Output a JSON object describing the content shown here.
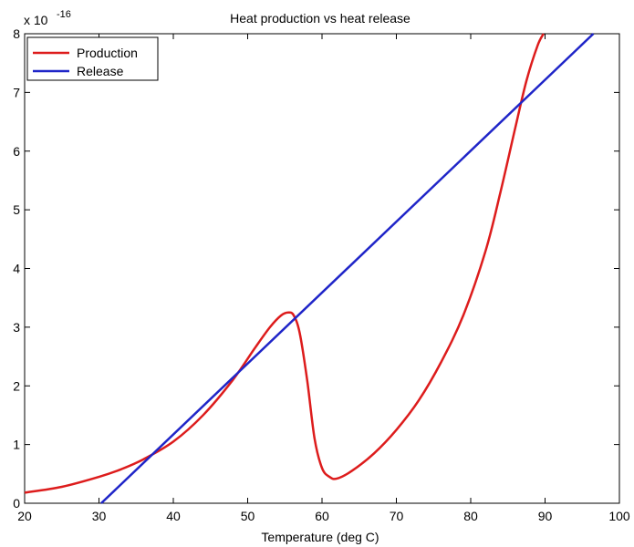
{
  "chart_data": {
    "type": "line",
    "title": "Heat production vs heat release",
    "xlabel": "Temperature (deg C)",
    "ylabel": "",
    "y_exponent_base": "x 10",
    "y_exponent_power": "-16",
    "xlim": [
      20,
      100
    ],
    "ylim": [
      0,
      8
    ],
    "xticks": [
      "20",
      "30",
      "40",
      "50",
      "60",
      "70",
      "80",
      "90",
      "100"
    ],
    "yticks": [
      "0",
      "1",
      "2",
      "3",
      "4",
      "5",
      "6",
      "7",
      "8"
    ],
    "grid": false,
    "legend_position": "top-left",
    "series": [
      {
        "name": "Production",
        "color": "#dd1c1c",
        "x": [
          20,
          25,
          30,
          33,
          36,
          40,
          44,
          48,
          51,
          53,
          54.5,
          55.5,
          56.2,
          57,
          58,
          59,
          60,
          61,
          62,
          64,
          67,
          70,
          73,
          76,
          79,
          82,
          84,
          86,
          87.5,
          89,
          89.8
        ],
        "y": [
          0.18,
          0.28,
          0.45,
          0.58,
          0.75,
          1.05,
          1.5,
          2.1,
          2.65,
          3.0,
          3.2,
          3.25,
          3.2,
          2.9,
          2.1,
          1.1,
          0.6,
          0.45,
          0.42,
          0.55,
          0.85,
          1.25,
          1.75,
          2.4,
          3.2,
          4.3,
          5.3,
          6.4,
          7.2,
          7.8,
          8.0
        ]
      },
      {
        "name": "Release",
        "color": "#1f25c8",
        "x": [
          30.3,
          96.5
        ],
        "y": [
          0.0,
          8.0
        ]
      }
    ]
  }
}
